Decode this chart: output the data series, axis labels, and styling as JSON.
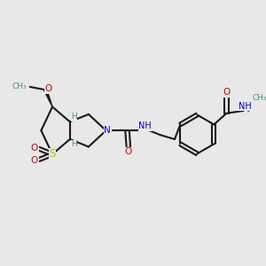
{
  "bg_color": "#e8e8e8",
  "bond_color": "#1a1a1a",
  "O_color": "#cc0000",
  "N_color": "#0000cc",
  "S_color": "#bbbb00",
  "H_color": "#4a8888",
  "xlim": [
    0,
    10
  ],
  "ylim": [
    0,
    10
  ]
}
